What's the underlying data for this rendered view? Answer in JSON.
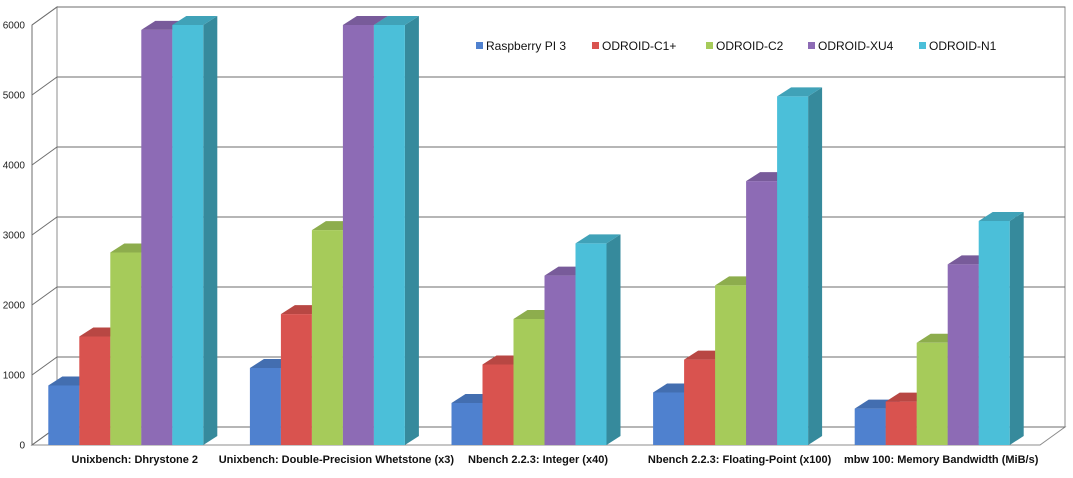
{
  "chart_data": {
    "type": "bar",
    "style": "3d-clustered-column",
    "categories": [
      "Unixbench: Dhrystone 2",
      "Unixbench: Double-Precision Whetstone (x3)",
      "Nbench 2.2.3: Integer (x40)",
      "Nbench 2.2.3: Floating-Point (x100)",
      "mbw 100: Memory Bandwidth (MiB/s)"
    ],
    "series": [
      {
        "name": "Raspberry PI 3",
        "color": "#4f81cf",
        "values": [
          850,
          1100,
          600,
          750,
          520
        ]
      },
      {
        "name": "ODROID-C1+",
        "color": "#d9534f",
        "values": [
          1550,
          1870,
          1150,
          1220,
          620
        ]
      },
      {
        "name": "ODROID-C2",
        "color": "#a6cb5a",
        "values": [
          2750,
          3070,
          1800,
          2280,
          1460
        ]
      },
      {
        "name": "ODROID-XU4",
        "color": "#8d6bb5",
        "values": [
          5930,
          6000,
          2420,
          3770,
          2580
        ]
      },
      {
        "name": "ODROID-N1",
        "color": "#4bbfd9",
        "values": [
          6000,
          6000,
          2880,
          4980,
          3200
        ]
      }
    ],
    "yticks": [
      0,
      1000,
      2000,
      3000,
      4000,
      5000,
      6000
    ],
    "ylim": [
      0,
      6000
    ],
    "grid": true,
    "legend_position": "top-right",
    "title": "",
    "xlabel": "",
    "ylabel": ""
  }
}
